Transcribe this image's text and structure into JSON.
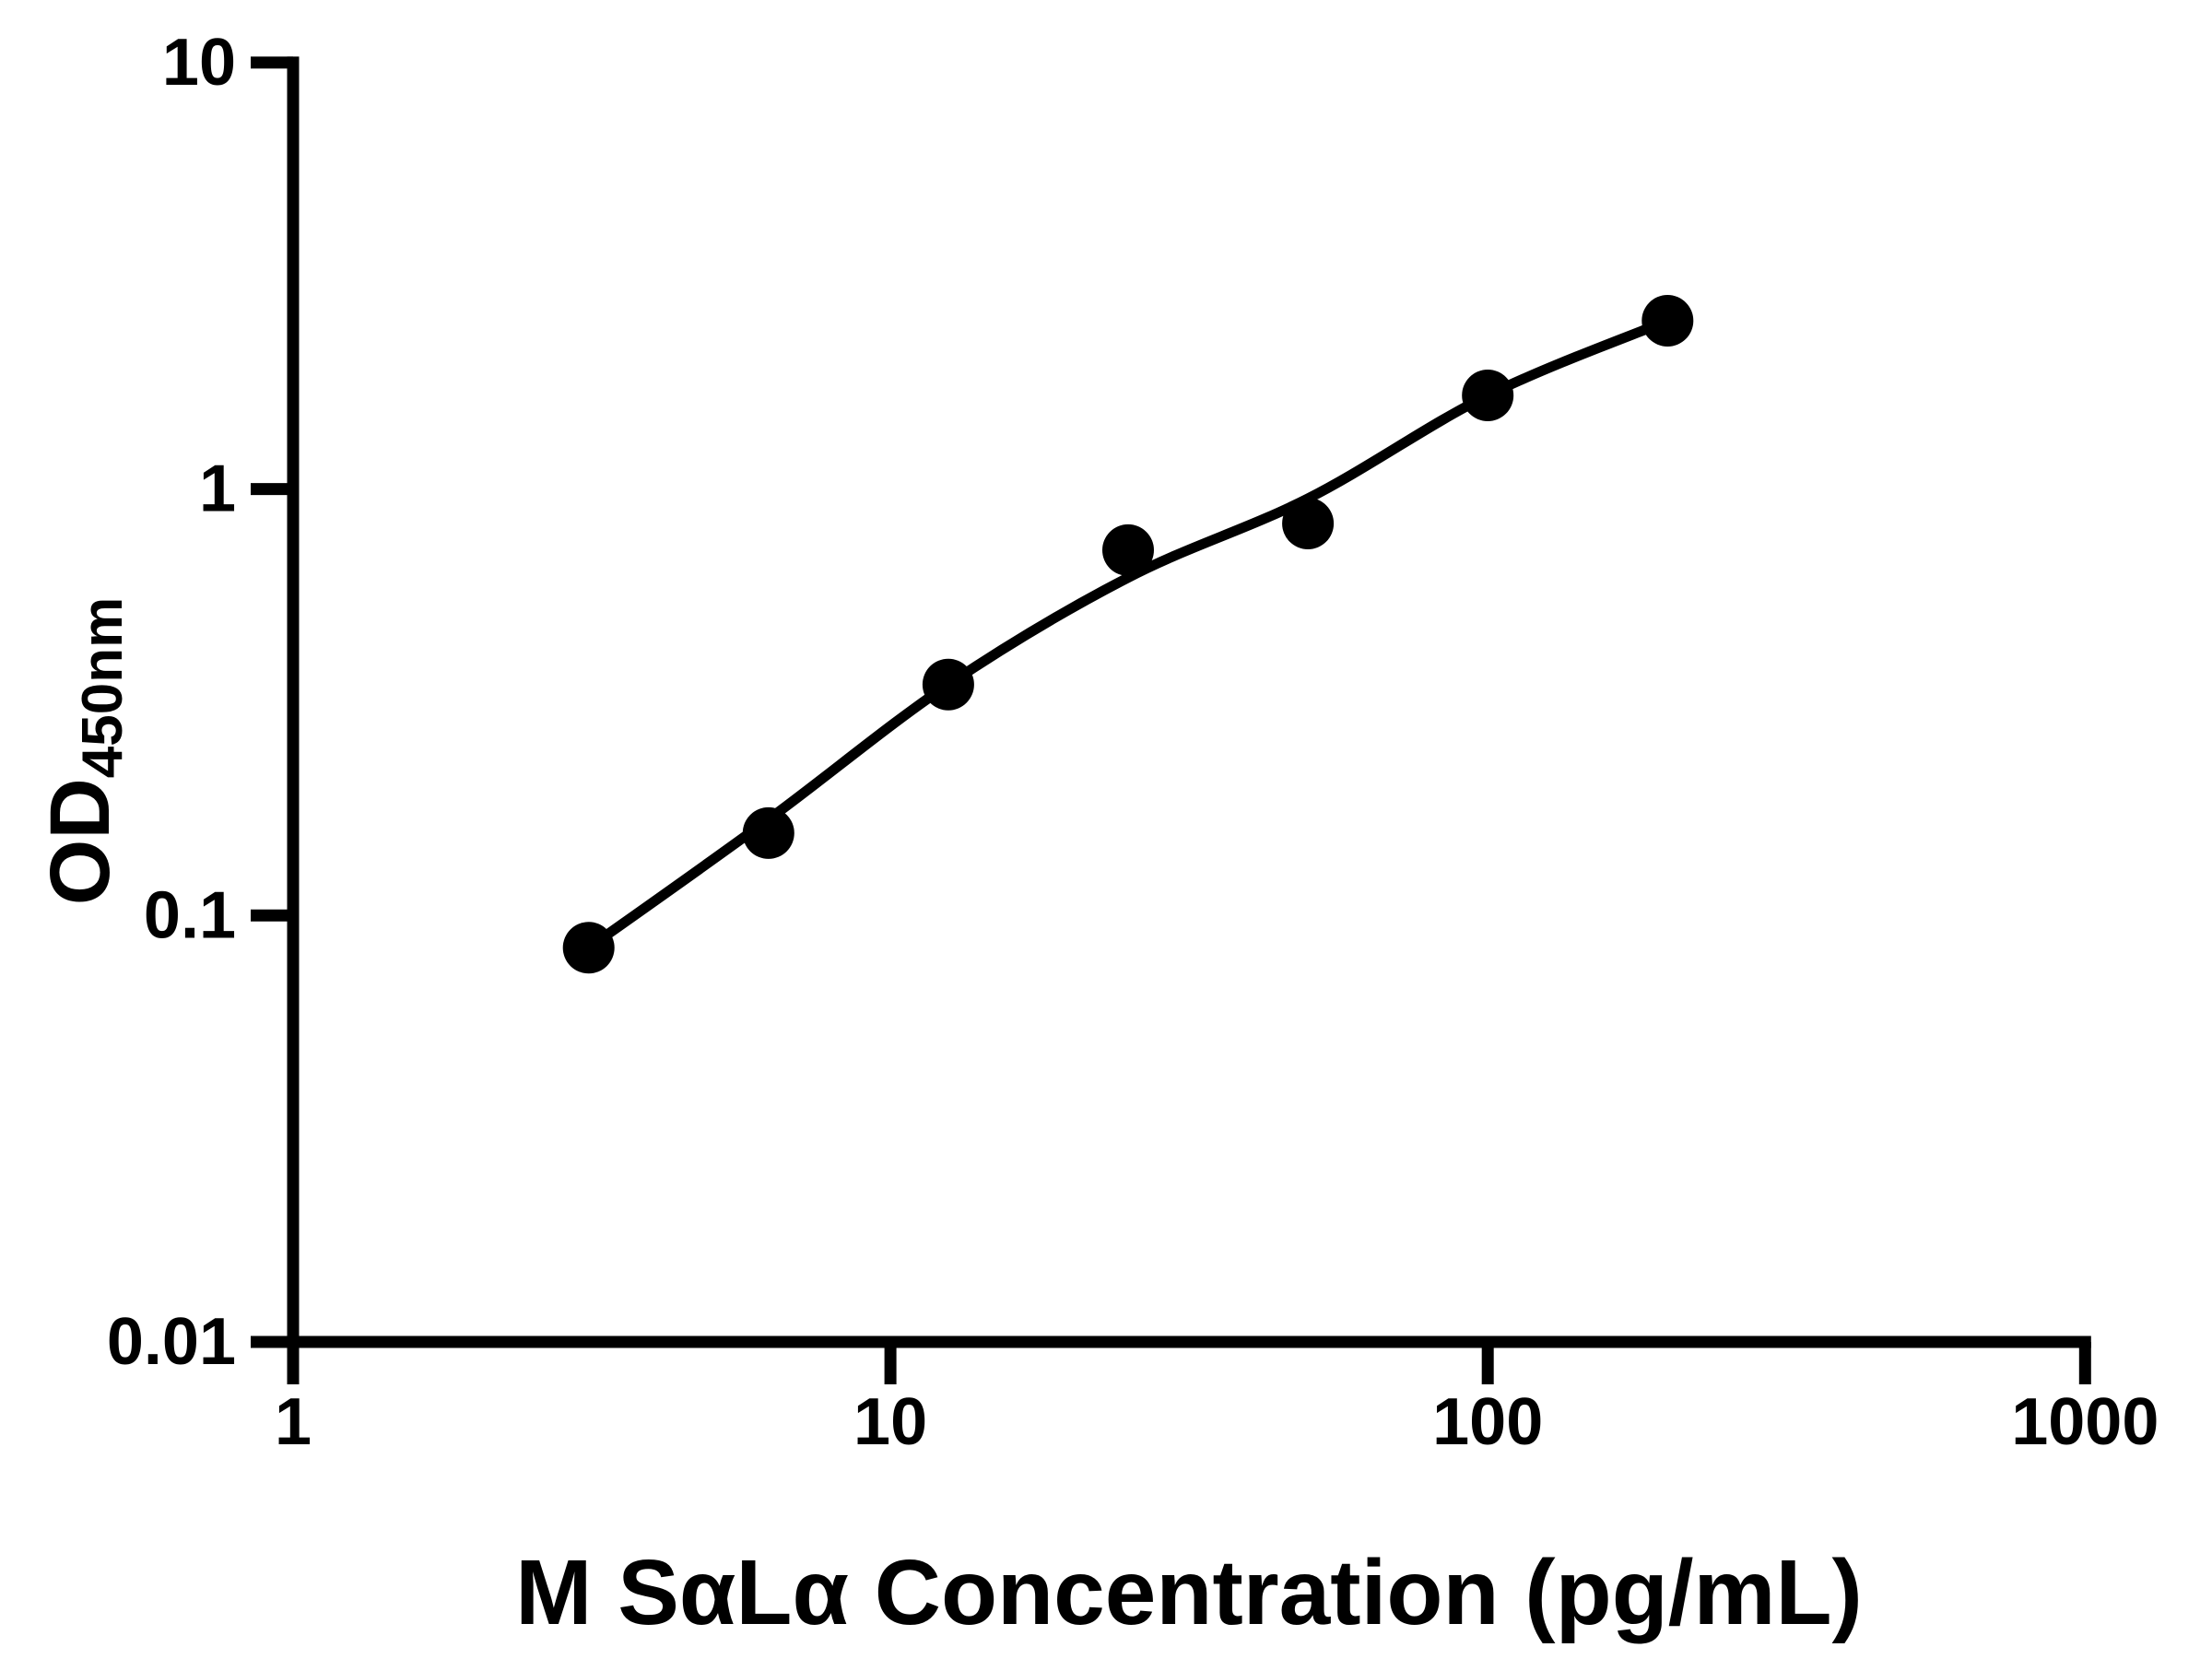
{
  "figure": {
    "background": "#ffffff",
    "ink_color": "#000000"
  },
  "chart_data": {
    "type": "scatter",
    "title": "",
    "xlabel": "M SαLα Concentration (pg/mL)",
    "ylabel": "OD450nm",
    "ylabel_main": "OD",
    "ylabel_subscript": "450nm",
    "x_scale": "log",
    "y_scale": "log",
    "xlim": [
      1,
      1000
    ],
    "ylim": [
      0.01,
      10
    ],
    "x_ticks": [
      {
        "value": 1,
        "label": "1"
      },
      {
        "value": 10,
        "label": "10"
      },
      {
        "value": 100,
        "label": "100"
      },
      {
        "value": 1000,
        "label": "1000"
      }
    ],
    "y_ticks": [
      {
        "value": 0.01,
        "label": "0.01"
      },
      {
        "value": 0.1,
        "label": "0.1"
      },
      {
        "value": 1,
        "label": "1"
      },
      {
        "value": 10,
        "label": "10"
      }
    ],
    "grid": false,
    "legend": false,
    "marker_color": "#000000",
    "line_color": "#000000",
    "series": [
      {
        "name": "standard data points",
        "type": "scatter",
        "marker": "circle",
        "points": [
          {
            "x": 3.125,
            "y": 0.084
          },
          {
            "x": 6.25,
            "y": 0.156
          },
          {
            "x": 12.5,
            "y": 0.348
          },
          {
            "x": 25,
            "y": 0.719
          },
          {
            "x": 50,
            "y": 0.83
          },
          {
            "x": 100,
            "y": 1.658
          },
          {
            "x": 200,
            "y": 2.481
          }
        ]
      },
      {
        "name": "fitted standard curve",
        "type": "line",
        "points": [
          {
            "x": 3.125,
            "y": 0.084
          },
          {
            "x": 6.25,
            "y": 0.168
          },
          {
            "x": 12.5,
            "y": 0.348
          },
          {
            "x": 25,
            "y": 0.62
          },
          {
            "x": 50,
            "y": 0.95
          },
          {
            "x": 100,
            "y": 1.658
          },
          {
            "x": 200,
            "y": 2.481
          }
        ]
      }
    ]
  }
}
